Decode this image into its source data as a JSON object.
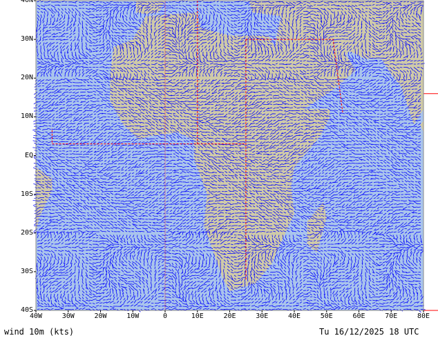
{
  "map": {
    "variable_label": "wind 10m (kts)",
    "valid_time": "Tu 16/12/2025 18 UTC",
    "lat_labels": [
      "40N",
      "30N",
      "20N",
      "10N",
      "EQ",
      "10S",
      "20S",
      "30S",
      "40S"
    ],
    "lon_labels": [
      "40W",
      "30W",
      "20W",
      "10W",
      "0",
      "10E",
      "20E",
      "30E",
      "40E",
      "50E",
      "60E",
      "70E",
      "80E"
    ],
    "extent": {
      "lon": [
        -40,
        80
      ],
      "lat": [
        -40,
        40
      ]
    },
    "colors": {
      "ocean": "#a9c4ec",
      "land": "#cfcaa8",
      "wind": "#0000ff",
      "border": "#ff0000"
    }
  }
}
